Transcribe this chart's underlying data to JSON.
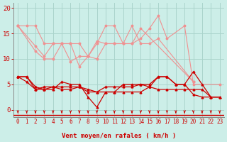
{
  "bg_color": "#cceee8",
  "grid_color": "#aad4cc",
  "text_color": "#cc0000",
  "xlabel": "Vent moyen/en rafales ( km/h )",
  "ylim": [
    -1.5,
    21
  ],
  "xlim": [
    -0.5,
    23.5
  ],
  "yticks": [
    0,
    5,
    10,
    15,
    20
  ],
  "xticks": [
    0,
    1,
    2,
    3,
    4,
    5,
    6,
    7,
    8,
    9,
    10,
    11,
    12,
    13,
    14,
    15,
    16,
    17,
    18,
    19,
    20,
    21,
    22,
    23
  ],
  "light_pink": "#f09090",
  "dark_red": "#cc0000",
  "lines_light": [
    [
      16.5,
      16.5,
      16.5,
      13.0,
      13.0,
      13.0,
      13.0,
      13.0,
      10.5,
      10.0,
      13.0,
      13.0,
      13.0,
      13.0,
      14.0,
      16.0,
      18.5,
      14.0,
      16.5,
      5.0,
      5.0
    ],
    [
      16.5,
      11.5,
      10.0,
      10.0,
      13.0,
      13.0,
      8.5,
      10.5,
      13.5,
      13.0,
      13.0,
      13.0,
      16.5,
      13.0,
      13.0,
      14.0,
      5.5
    ],
    [
      16.5,
      12.5,
      10.5,
      13.0,
      13.0,
      9.5,
      10.5,
      10.5,
      13.0,
      16.5,
      16.5,
      13.0,
      13.0,
      16.0,
      5.5
    ]
  ],
  "lines_light_x": [
    [
      0,
      1,
      2,
      3,
      4,
      5,
      6,
      7,
      8,
      9,
      10,
      11,
      12,
      13,
      14,
      15,
      16,
      17,
      19,
      20,
      23
    ],
    [
      0,
      2,
      3,
      4,
      5,
      6,
      7,
      8,
      9,
      10,
      11,
      12,
      13,
      14,
      15,
      16,
      20
    ],
    [
      0,
      2,
      3,
      4,
      5,
      6,
      7,
      8,
      9,
      10,
      11,
      12,
      13,
      14,
      20
    ]
  ],
  "lines_dark": [
    [
      6.5,
      6.5,
      4.5,
      4.0,
      4.0,
      5.5,
      5.0,
      5.0,
      2.5,
      0.5,
      3.5,
      3.5,
      5.0,
      5.0,
      5.0,
      5.0,
      6.5,
      6.5,
      5.0,
      5.0,
      7.5,
      5.0,
      2.5,
      2.5
    ],
    [
      6.5,
      6.5,
      4.0,
      4.5,
      4.5,
      4.0,
      4.0,
      4.5,
      3.5,
      3.5,
      3.5,
      3.5,
      3.5,
      3.5,
      3.5,
      4.5,
      6.5,
      6.5,
      5.0,
      5.0,
      3.0,
      2.5,
      2.5,
      2.5
    ],
    [
      6.5,
      5.5,
      4.0,
      4.0,
      4.5,
      4.5,
      4.5,
      4.5,
      4.0,
      3.5,
      4.5,
      4.5,
      4.5,
      4.5,
      5.0,
      4.5,
      4.0,
      4.0,
      4.0,
      4.0,
      4.0,
      4.0,
      2.5,
      2.5
    ]
  ],
  "lines_dark_x": [
    [
      0,
      1,
      2,
      3,
      4,
      5,
      6,
      7,
      8,
      9,
      10,
      11,
      12,
      13,
      14,
      15,
      16,
      17,
      18,
      19,
      20,
      21,
      22,
      23
    ],
    [
      0,
      1,
      2,
      3,
      4,
      5,
      6,
      7,
      8,
      9,
      10,
      11,
      12,
      13,
      14,
      15,
      16,
      17,
      18,
      19,
      20,
      21,
      22,
      23
    ],
    [
      0,
      1,
      2,
      3,
      4,
      5,
      6,
      7,
      8,
      9,
      10,
      11,
      12,
      13,
      14,
      15,
      16,
      17,
      18,
      19,
      20,
      21,
      22,
      23
    ]
  ]
}
